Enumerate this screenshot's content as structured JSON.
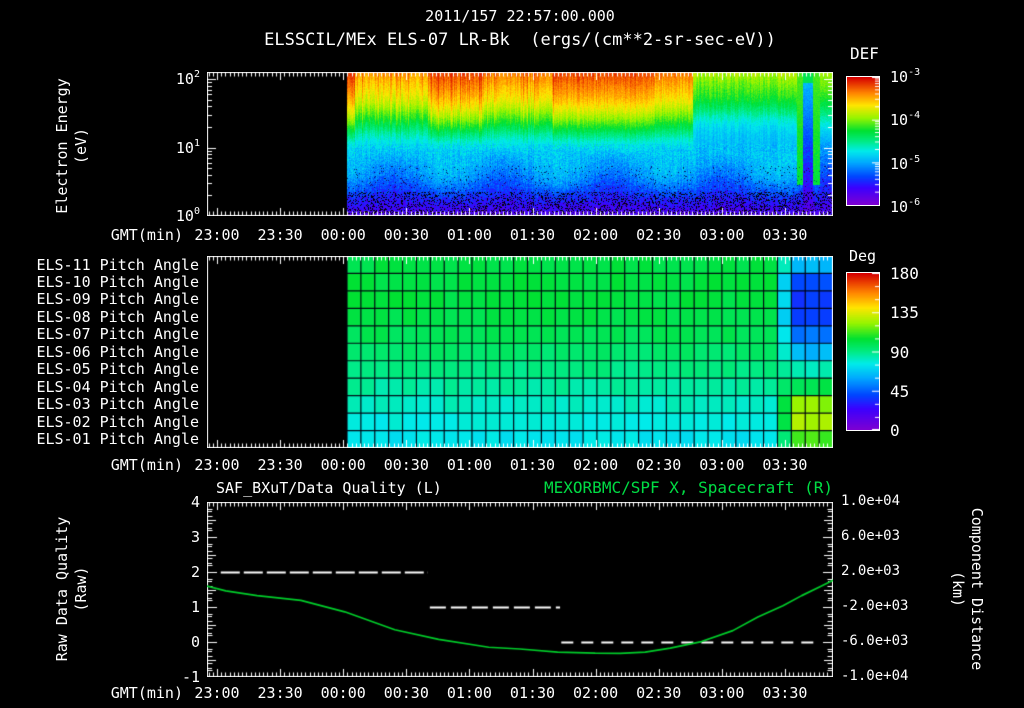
{
  "page": {
    "bg": "#000000",
    "fg": "#ffffff",
    "accent_green": "#00dd44",
    "curve_green": "#00cd2a"
  },
  "header": {
    "title_line1": "2011/157 22:57:00.000",
    "title_line2": "ELSSCIL/MEx ELS-07 LR-Bk  (ergs/(cm**2-sr-sec-eV))"
  },
  "time_axis": {
    "label": "GMT(min)",
    "ticks": [
      "23:00",
      "23:30",
      "00:00",
      "00:30",
      "01:00",
      "01:30",
      "02:00",
      "02:30",
      "03:00",
      "03:30"
    ],
    "start": "22:57",
    "end": "03:53"
  },
  "top_panel": {
    "y_title_line1": "Electron Energy",
    "y_title_line2": "(eV)",
    "y_ticks": [
      "10^2",
      "10^1",
      "10^0"
    ],
    "colorbar": {
      "title": "DEF",
      "ticks": [
        "10^-3",
        "10^-4",
        "10^-5",
        "10^-6"
      ]
    }
  },
  "middle_panel": {
    "colorbar": {
      "title": "Deg",
      "ticks": [
        "180",
        "135",
        "90",
        "45",
        "0"
      ]
    }
  },
  "bottom_panel": {
    "title_left": "SAF_BXuT/Data Quality (L)",
    "title_right": "MEXORBMC/SPF X, Spacecraft (R)",
    "y_left_title_line1": "Raw Data Quality",
    "y_left_title_line2": "(Raw)",
    "y_left_ticks": [
      "4",
      "3",
      "2",
      "1",
      "0",
      "-1"
    ],
    "y_right_title_line1": "Component Distance",
    "y_right_title_line2": "(km)",
    "y_right_ticks": [
      "1.0e+04",
      "6.0e+03",
      "2.0e+03",
      "-2.0e+03",
      "-6.0e+03",
      "-1.0e+04"
    ]
  },
  "chart_data": [
    {
      "type": "heatmap",
      "id": "electron-energy-spectrogram",
      "title": "ELSSCIL/MEx ELS-07 LR-Bk (ergs/(cm**2-sr-sec-eV))",
      "ylabel": "Electron Energy (eV)",
      "yscale": "log",
      "energy_range_ev": [
        1,
        130
      ],
      "flux_range_log10": [
        -6,
        -3
      ],
      "colorbar_label": "DEF",
      "x_start": "22:57",
      "x_end": "03:53",
      "data_start_frac": 0.2236,
      "colormap": [
        {
          "t": 0.0,
          "c": "#7d00d2"
        },
        {
          "t": 0.13,
          "c": "#3c00ff"
        },
        {
          "t": 0.22,
          "c": "#0046ff"
        },
        {
          "t": 0.33,
          "c": "#00aaff"
        },
        {
          "t": 0.42,
          "c": "#00ebeb"
        },
        {
          "t": 0.5,
          "c": "#00eb82"
        },
        {
          "t": 0.58,
          "c": "#00e132"
        },
        {
          "t": 0.68,
          "c": "#96f500"
        },
        {
          "t": 0.78,
          "c": "#ffe600"
        },
        {
          "t": 0.88,
          "c": "#ff8200"
        },
        {
          "t": 1.0,
          "c": "#d70000"
        }
      ],
      "hot_bands": [
        {
          "from": 0.0,
          "to": 0.015,
          "boost": 0.13
        },
        {
          "from": 0.015,
          "to": 0.17,
          "boost": 0.02
        },
        {
          "from": 0.17,
          "to": 0.28,
          "boost": 0.1
        },
        {
          "from": 0.28,
          "to": 0.42,
          "boost": 0.05
        },
        {
          "from": 0.42,
          "to": 0.63,
          "boost": 0.11
        },
        {
          "from": 0.63,
          "to": 0.71,
          "boost": 0.06
        },
        {
          "from": 0.71,
          "to": 0.925,
          "boost": -0.13
        }
      ],
      "stripes": [
        {
          "from": 0.925,
          "to": 0.937,
          "type": "green"
        },
        {
          "from": 0.937,
          "to": 0.957,
          "type": "dark"
        },
        {
          "from": 0.957,
          "to": 0.972,
          "type": "green"
        },
        {
          "from": 0.972,
          "to": 1.0,
          "type": "calm"
        }
      ]
    },
    {
      "type": "heatmap",
      "id": "pitch-angle-grid",
      "colorbar_label": "Deg",
      "value_range_deg": [
        0,
        180
      ],
      "data_start_frac": 0.2236,
      "flip_mix_from": 0.885,
      "flip_from": 0.925,
      "n_cols": 35,
      "rows": [
        {
          "label": "ELS-11 Pitch Angle",
          "base_deg": 101,
          "end_deg": 62
        },
        {
          "label": "ELS-10 Pitch Angle",
          "base_deg": 102,
          "end_deg": 40
        },
        {
          "label": "ELS-09 Pitch Angle",
          "base_deg": 102,
          "end_deg": 36
        },
        {
          "label": "ELS-08 Pitch Angle",
          "base_deg": 100,
          "end_deg": 40
        },
        {
          "label": "ELS-07 Pitch Angle",
          "base_deg": 98,
          "end_deg": 48
        },
        {
          "label": "ELS-06 Pitch Angle",
          "base_deg": 94,
          "end_deg": 62
        },
        {
          "label": "ELS-05 Pitch Angle",
          "base_deg": 90,
          "end_deg": 82
        },
        {
          "label": "ELS-04 Pitch Angle",
          "base_deg": 86,
          "end_deg": 100
        },
        {
          "label": "ELS-03 Pitch Angle",
          "base_deg": 81,
          "end_deg": 122
        },
        {
          "label": "ELS-02 Pitch Angle",
          "base_deg": 77,
          "end_deg": 126
        },
        {
          "label": "ELS-01 Pitch Angle",
          "base_deg": 74,
          "end_deg": 112
        }
      ]
    },
    {
      "type": "line",
      "id": "quality-and-distance",
      "x_start": "22:57",
      "x_end": "03:53",
      "left_axis": {
        "label": "Raw Data Quality (Raw)",
        "ylim": [
          -1,
          4
        ]
      },
      "right_axis": {
        "label": "Component Distance (km)",
        "ylim": [
          -10000,
          10000
        ]
      },
      "series": [
        {
          "name": "SAF_BXuT/Data Quality (L)",
          "axis": "left",
          "style": "dashed-white",
          "segments": [
            {
              "value": 2,
              "t_from": "23:02",
              "t_to": "00:40",
              "x0": 0.022,
              "x1": 0.353,
              "dash": [
                19,
                4
              ]
            },
            {
              "value": 1,
              "t_from": "00:41",
              "t_to": "01:43",
              "x0": 0.356,
              "x1": 0.564,
              "dash": [
                16,
                5
              ]
            },
            {
              "value": 0,
              "t_from": "01:44",
              "t_to": "03:46",
              "x0": 0.566,
              "x1": 0.976,
              "dash": [
                12,
                8
              ]
            }
          ]
        },
        {
          "name": "MEXORBMC/SPF X, Spacecraft (R)",
          "axis": "right",
          "style": "solid-green",
          "points": [
            [
              0.0,
              400
            ],
            [
              0.03,
              -150
            ],
            [
              0.08,
              -700
            ],
            [
              0.15,
              -1250
            ],
            [
              0.22,
              -2550
            ],
            [
              0.3,
              -4600
            ],
            [
              0.37,
              -5700
            ],
            [
              0.45,
              -6600
            ],
            [
              0.5,
              -6800
            ],
            [
              0.56,
              -7150
            ],
            [
              0.62,
              -7280
            ],
            [
              0.66,
              -7300
            ],
            [
              0.7,
              -7150
            ],
            [
              0.74,
              -6700
            ],
            [
              0.79,
              -5950
            ],
            [
              0.84,
              -4700
            ],
            [
              0.88,
              -3150
            ],
            [
              0.92,
              -1850
            ],
            [
              0.95,
              -700
            ],
            [
              0.98,
              350
            ],
            [
              1.0,
              1050
            ]
          ]
        }
      ]
    }
  ]
}
